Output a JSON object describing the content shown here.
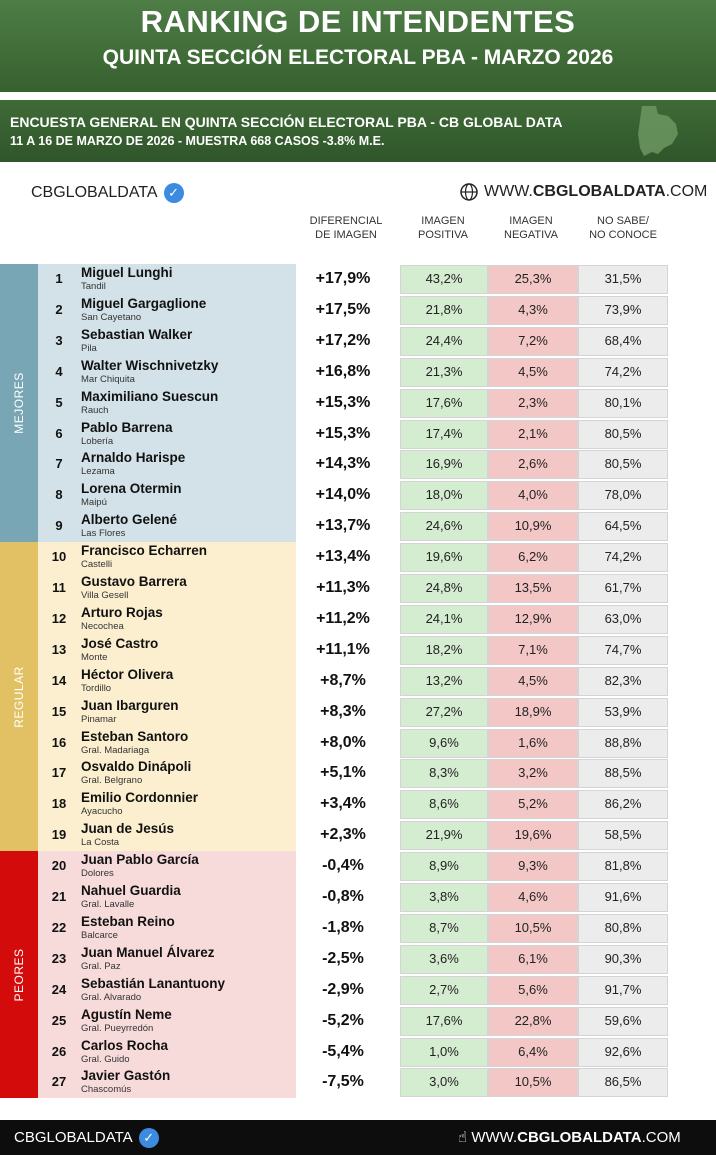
{
  "header": {
    "title": "RANKING DE INTENDENTES",
    "subtitle": "QUINTA SECCIÓN ELECTORAL PBA - MARZO 2026",
    "survey_line1": "ENCUESTA GENERAL EN QUINTA SECCIÓN ELECTORAL PBA - CB GLOBAL DATA",
    "survey_line2": "11 A 16 DE MARZO  DE 2026 - MUESTRA 668  CASOS -3.8% M.E."
  },
  "brand": {
    "name": "CBGLOBALDATA",
    "site_prefix": "WWW.",
    "site_bold": "CBGLOBALDATA",
    "site_suffix": ".COM"
  },
  "columns": {
    "diff": [
      "DIFERENCIAL",
      "DE IMAGEN"
    ],
    "pos": [
      "IMAGEN",
      "POSITIVA"
    ],
    "neg": [
      "IMAGEN",
      "NEGATIVA"
    ],
    "ns": [
      "NO SABE/",
      "NO CONOCE"
    ]
  },
  "groups": [
    {
      "label": "MEJORES",
      "color": "#79a6b4",
      "light": "#d2e2e8",
      "from": 1,
      "to": 9
    },
    {
      "label": "REGULAR",
      "color": "#e2c064",
      "light": "#fbefcf",
      "from": 10,
      "to": 19
    },
    {
      "label": "PEORES",
      "color": "#d30b0b",
      "light": "#f7dbdb",
      "from": 20,
      "to": 27
    }
  ],
  "colors": {
    "header_green": "#3f6b37",
    "positive_bg": "#d4ecd0",
    "negative_bg": "#f4c7c7",
    "unknown_bg": "#ececec"
  },
  "rows": [
    {
      "rank": "1",
      "name": "Miguel Lunghi",
      "city": "Tandil",
      "diff": "+17,9%",
      "pos": "43,2%",
      "neg": "25,3%",
      "ns": "31,5%"
    },
    {
      "rank": "2",
      "name": "Miguel Gargaglione",
      "city": "San Cayetano",
      "diff": "+17,5%",
      "pos": "21,8%",
      "neg": "4,3%",
      "ns": "73,9%"
    },
    {
      "rank": "3",
      "name": "Sebastian Walker",
      "city": "Pila",
      "diff": "+17,2%",
      "pos": "24,4%",
      "neg": "7,2%",
      "ns": "68,4%"
    },
    {
      "rank": "4",
      "name": "Walter Wischnivetzky",
      "city": "Mar Chiquita",
      "diff": "+16,8%",
      "pos": "21,3%",
      "neg": "4,5%",
      "ns": "74,2%"
    },
    {
      "rank": "5",
      "name": "Maximiliano Suescun",
      "city": "Rauch",
      "diff": "+15,3%",
      "pos": "17,6%",
      "neg": "2,3%",
      "ns": "80,1%"
    },
    {
      "rank": "6",
      "name": "Pablo Barrena",
      "city": "Lobería",
      "diff": "+15,3%",
      "pos": "17,4%",
      "neg": "2,1%",
      "ns": "80,5%"
    },
    {
      "rank": "7",
      "name": "Arnaldo Harispe",
      "city": "Lezama",
      "diff": "+14,3%",
      "pos": "16,9%",
      "neg": "2,6%",
      "ns": "80,5%"
    },
    {
      "rank": "8",
      "name": "Lorena Otermin",
      "city": "Maipú",
      "diff": "+14,0%",
      "pos": "18,0%",
      "neg": "4,0%",
      "ns": "78,0%"
    },
    {
      "rank": "9",
      "name": "Alberto Gelené",
      "city": "Las Flores",
      "diff": "+13,7%",
      "pos": "24,6%",
      "neg": "10,9%",
      "ns": "64,5%"
    },
    {
      "rank": "10",
      "name": "Francisco Echarren",
      "city": "Castelli",
      "diff": "+13,4%",
      "pos": "19,6%",
      "neg": "6,2%",
      "ns": "74,2%"
    },
    {
      "rank": "11",
      "name": "Gustavo Barrera",
      "city": "Villa Gesell",
      "diff": "+11,3%",
      "pos": "24,8%",
      "neg": "13,5%",
      "ns": "61,7%"
    },
    {
      "rank": "12",
      "name": "Arturo Rojas",
      "city": "Necochea",
      "diff": "+11,2%",
      "pos": "24,1%",
      "neg": "12,9%",
      "ns": "63,0%"
    },
    {
      "rank": "13",
      "name": "José Castro",
      "city": "Monte",
      "diff": "+11,1%",
      "pos": "18,2%",
      "neg": "7,1%",
      "ns": "74,7%"
    },
    {
      "rank": "14",
      "name": "Héctor Olivera",
      "city": "Tordillo",
      "diff": "+8,7%",
      "pos": "13,2%",
      "neg": "4,5%",
      "ns": "82,3%"
    },
    {
      "rank": "15",
      "name": "Juan Ibarguren",
      "city": "Pinamar",
      "diff": "+8,3%",
      "pos": "27,2%",
      "neg": "18,9%",
      "ns": "53,9%"
    },
    {
      "rank": "16",
      "name": "Esteban Santoro",
      "city": "Gral. Madariaga",
      "diff": "+8,0%",
      "pos": "9,6%",
      "neg": "1,6%",
      "ns": "88,8%"
    },
    {
      "rank": "17",
      "name": "Osvaldo Dinápoli",
      "city": "Gral. Belgrano",
      "diff": "+5,1%",
      "pos": "8,3%",
      "neg": "3,2%",
      "ns": "88,5%"
    },
    {
      "rank": "18",
      "name": "Emilio Cordonnier",
      "city": "Ayacucho",
      "diff": "+3,4%",
      "pos": "8,6%",
      "neg": "5,2%",
      "ns": "86,2%"
    },
    {
      "rank": "19",
      "name": "Juan de Jesús",
      "city": "La Costa",
      "diff": "+2,3%",
      "pos": "21,9%",
      "neg": "19,6%",
      "ns": "58,5%"
    },
    {
      "rank": "20",
      "name": "Juan Pablo García",
      "city": "Dolores",
      "diff": "-0,4%",
      "pos": "8,9%",
      "neg": "9,3%",
      "ns": "81,8%"
    },
    {
      "rank": "21",
      "name": "Nahuel Guardia",
      "city": "Gral. Lavalle",
      "diff": "-0,8%",
      "pos": "3,8%",
      "neg": "4,6%",
      "ns": "91,6%"
    },
    {
      "rank": "22",
      "name": "Esteban Reino",
      "city": "Balcarce",
      "diff": "-1,8%",
      "pos": "8,7%",
      "neg": "10,5%",
      "ns": "80,8%"
    },
    {
      "rank": "23",
      "name": "Juan Manuel Álvarez",
      "city": "Gral. Paz",
      "diff": "-2,5%",
      "pos": "3,6%",
      "neg": "6,1%",
      "ns": "90,3%"
    },
    {
      "rank": "24",
      "name": "Sebastián Lanantuony",
      "city": "Gral. Alvarado",
      "diff": "-2,9%",
      "pos": "2,7%",
      "neg": "5,6%",
      "ns": "91,7%"
    },
    {
      "rank": "25",
      "name": "Agustín Neme",
      "city": "Gral. Pueyrredón",
      "diff": "-5,2%",
      "pos": "17,6%",
      "neg": "22,8%",
      "ns": "59,6%"
    },
    {
      "rank": "26",
      "name": "Carlos Rocha",
      "city": "Gral. Guido",
      "diff": "-5,4%",
      "pos": "1,0%",
      "neg": "6,4%",
      "ns": "92,6%"
    },
    {
      "rank": "27",
      "name": "Javier Gastón",
      "city": "Chascomús",
      "diff": "-7,5%",
      "pos": "3,0%",
      "neg": "10,5%",
      "ns": "86,5%"
    }
  ]
}
